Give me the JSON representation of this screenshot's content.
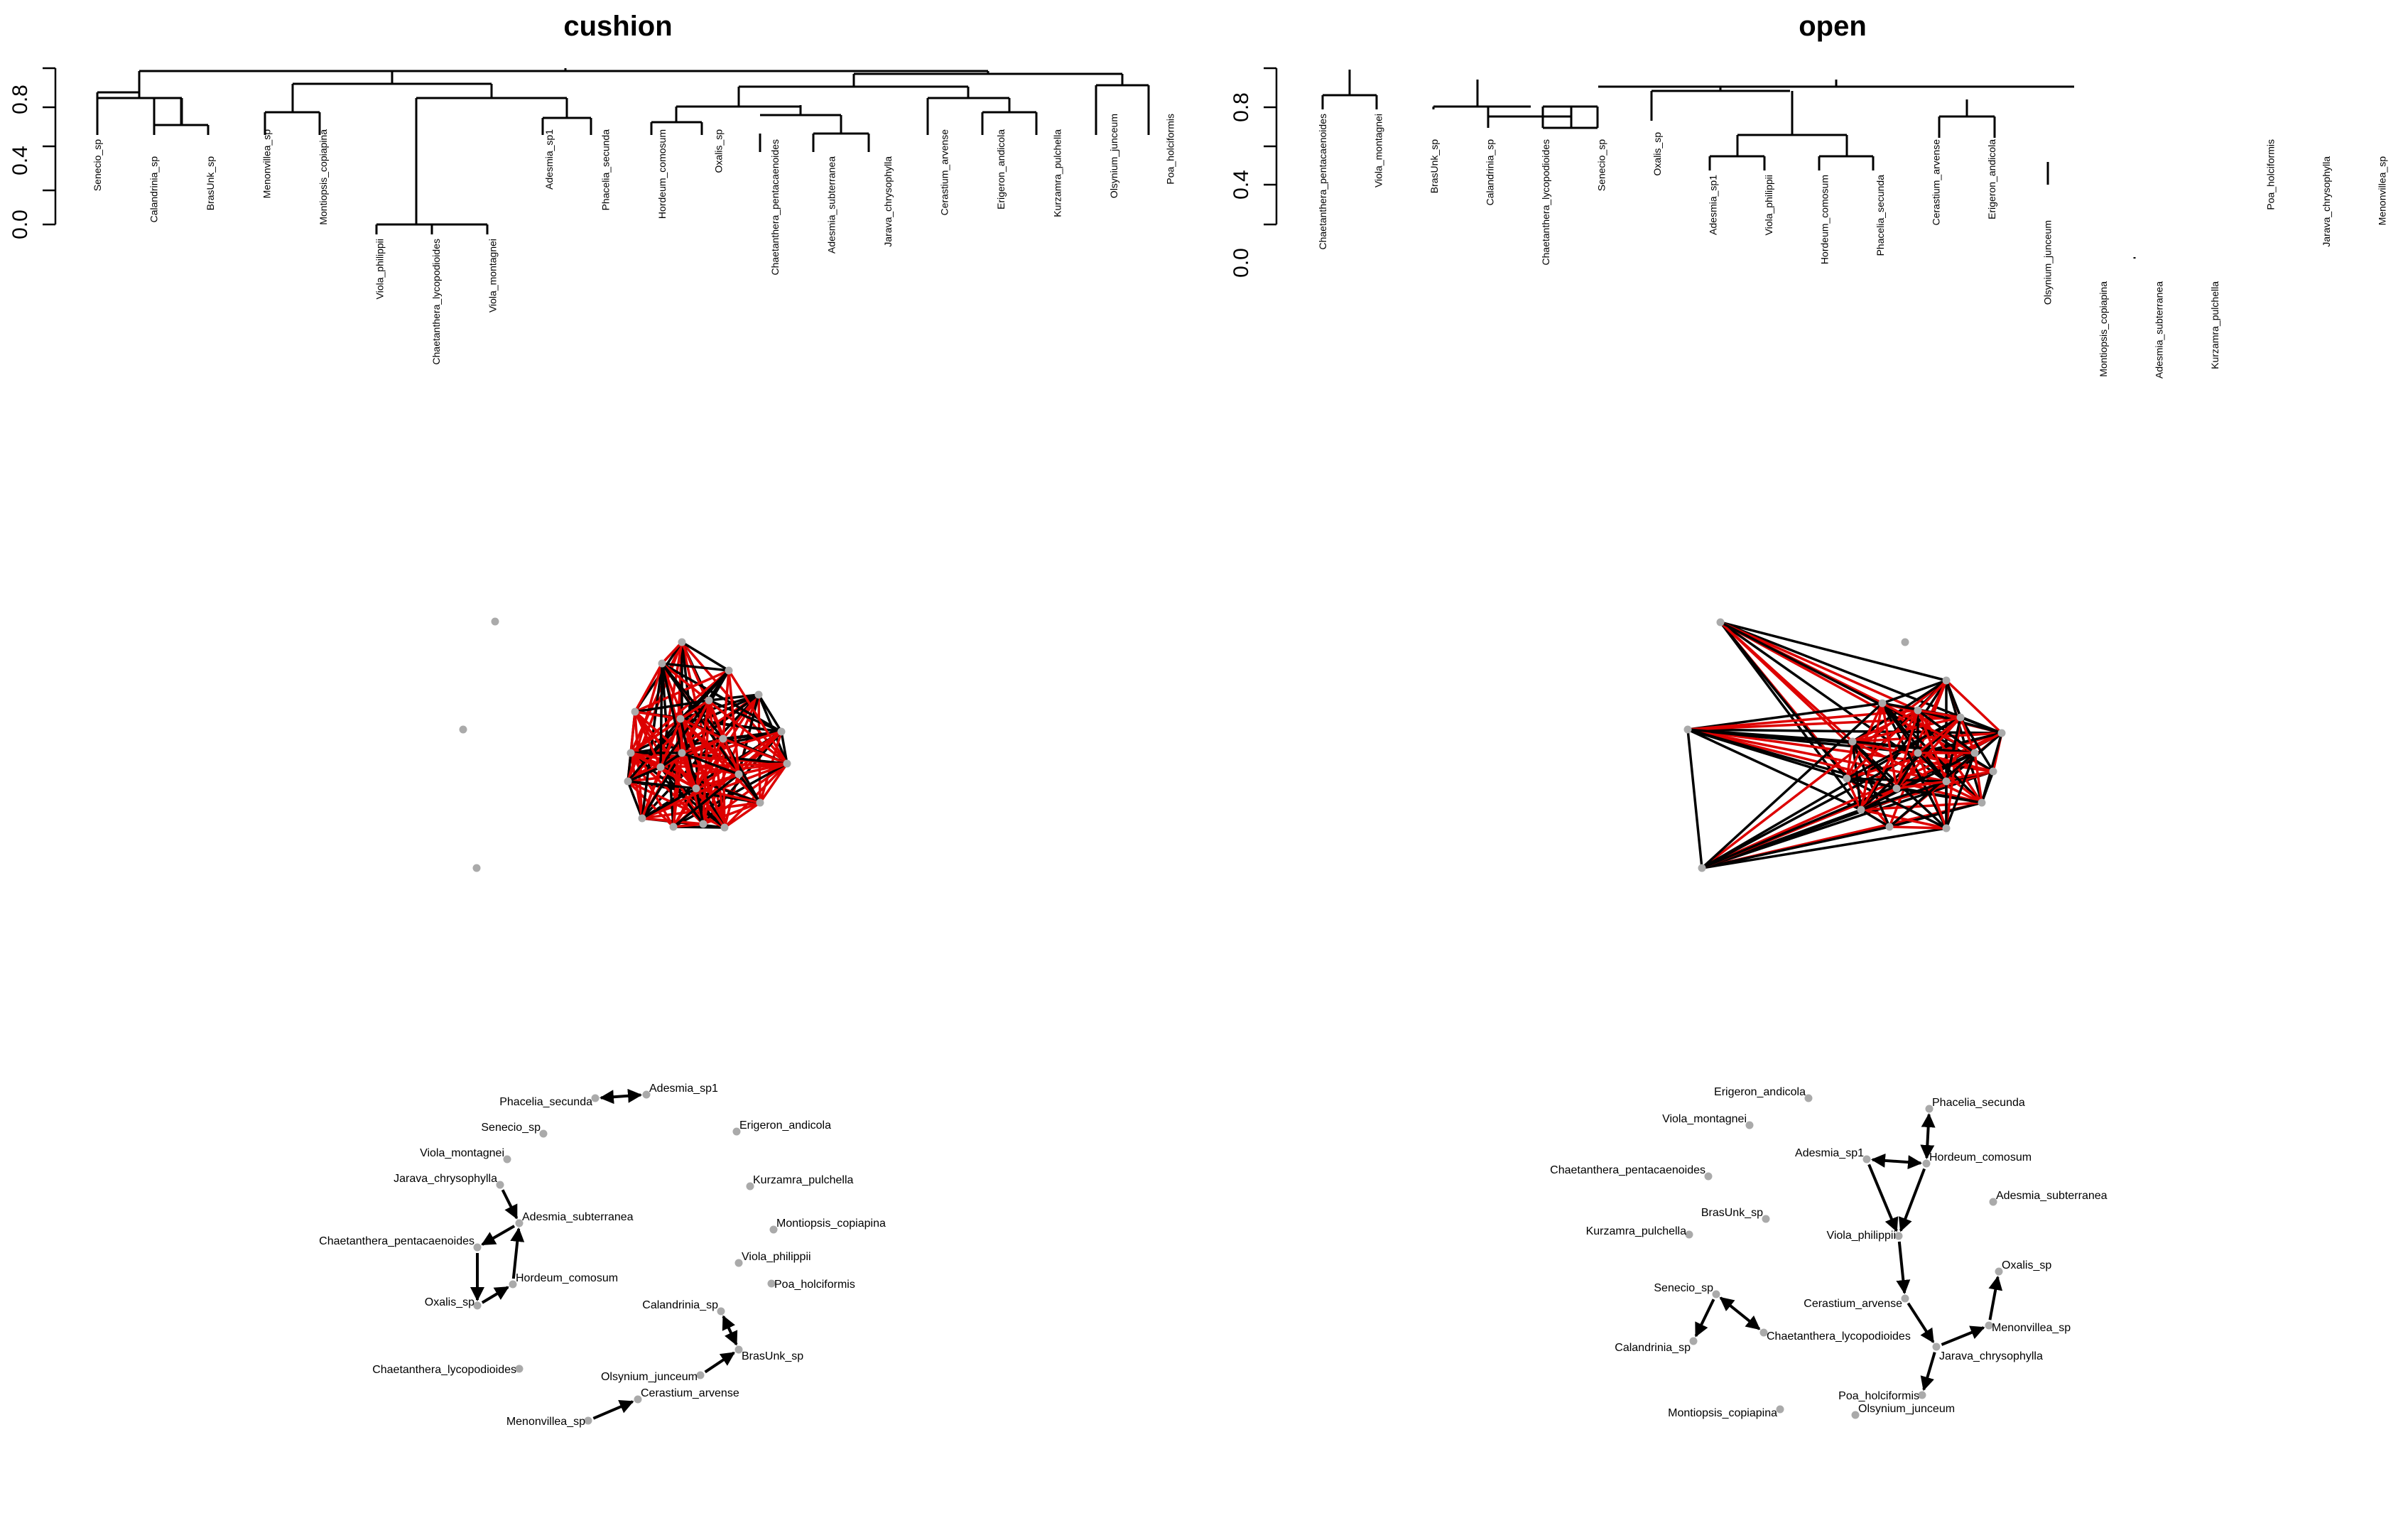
{
  "panels": [
    {
      "title": "cushion",
      "y_ticks": [
        "0.0",
        "0.4",
        "0.8"
      ],
      "leaves": [
        "Senecio_sp",
        "Calandrinia_sp",
        "BrasUnk_sp",
        "Menonvillea_sp",
        "Montiopsis_copiapina",
        "Viola_philippii",
        "Chaetanthera_lycopodioides",
        "Viola_montagnei",
        "Adesmia_sp1",
        "Phacelia_secunda",
        "Hordeum_comosum",
        "Oxalis_sp",
        "Chaetanthera_pentacaenoides",
        "Adesmia_subterranea",
        "Jarava_chrysophylla",
        "Cerastium_arvense",
        "Erigeron_andicola",
        "Kurzamra_pulchella",
        "Olsynium_junceum",
        "Poa_holciformis"
      ],
      "graph_labels": [
        {
          "text": "Phacelia_secunda",
          "anchor": "end"
        },
        {
          "text": "Adesmia_sp1",
          "anchor": "start"
        },
        {
          "text": "Senecio_sp",
          "anchor": "end"
        },
        {
          "text": "Erigeron_andicola",
          "anchor": "start"
        },
        {
          "text": "Viola_montagnei",
          "anchor": "end"
        },
        {
          "text": "Jarava_chrysophylla",
          "anchor": "end"
        },
        {
          "text": "Kurzamra_pulchella",
          "anchor": "start"
        },
        {
          "text": "Adesmia_subterranea",
          "anchor": "start"
        },
        {
          "text": "Montiopsis_copiapina",
          "anchor": "start"
        },
        {
          "text": "Chaetanthera_pentacaenoides",
          "anchor": "end"
        },
        {
          "text": "Viola_philippii",
          "anchor": "start"
        },
        {
          "text": "Hordeum_comosum",
          "anchor": "start"
        },
        {
          "text": "Poa_holciformis",
          "anchor": "start"
        },
        {
          "text": "Oxalis_sp",
          "anchor": "end"
        },
        {
          "text": "Calandrinia_sp",
          "anchor": "end"
        },
        {
          "text": "BrasUnk_sp",
          "anchor": "start"
        },
        {
          "text": "Chaetanthera_lycopodioides",
          "anchor": "end"
        },
        {
          "text": "Olsynium_junceum",
          "anchor": "end"
        },
        {
          "text": "Cerastium_arvense",
          "anchor": "start"
        },
        {
          "text": "Menonvillea_sp",
          "anchor": "end"
        }
      ]
    },
    {
      "title": "open",
      "y_ticks": [
        "0.0",
        "0.4",
        "0.8"
      ],
      "leaves": [
        "Chaetanthera_pentacaenoides",
        "Viola_montagnei",
        "BrasUnk_sp",
        "Calandrinia_sp",
        "Chaetanthera_lycopodioides",
        "Senecio_sp",
        "Oxalis_sp",
        "Adesmia_sp1",
        "Viola_philippii",
        "Hordeum_comosum",
        "Phacelia_secunda",
        "Cerastium_arvense",
        "Erigeron_andicola",
        "Olsynium_junceum",
        "Montiopsis_copiapina",
        "Adesmia_subterranea",
        "Kurzamra_pulchella",
        "Poa_holciformis",
        "Jarava_chrysophylla",
        "Menonvillea_sp"
      ],
      "graph_labels": [
        {
          "text": "Erigeron_andicola",
          "anchor": "end"
        },
        {
          "text": "Phacelia_secunda",
          "anchor": "start"
        },
        {
          "text": "Viola_montagnei",
          "anchor": "end"
        },
        {
          "text": "Adesmia_sp1",
          "anchor": "end"
        },
        {
          "text": "Hordeum_comosum",
          "anchor": "start"
        },
        {
          "text": "Chaetanthera_pentacaenoides",
          "anchor": "end"
        },
        {
          "text": "Adesmia_subterranea",
          "anchor": "start"
        },
        {
          "text": "BrasUnk_sp",
          "anchor": "end"
        },
        {
          "text": "Kurzamra_pulchella",
          "anchor": "end"
        },
        {
          "text": "Viola_philippii",
          "anchor": "end"
        },
        {
          "text": "Oxalis_sp",
          "anchor": "start"
        },
        {
          "text": "Senecio_sp",
          "anchor": "end"
        },
        {
          "text": "Cerastium_arvense",
          "anchor": "end"
        },
        {
          "text": "Menonvillea_sp",
          "anchor": "start"
        },
        {
          "text": "Chaetanthera_lycopodioides",
          "anchor": "start"
        },
        {
          "text": "Calandrinia_sp",
          "anchor": "end"
        },
        {
          "text": "Jarava_chrysophylla",
          "anchor": "start"
        },
        {
          "text": "Poa_holciformis",
          "anchor": "end"
        },
        {
          "text": "Olsynium_junceum",
          "anchor": "start"
        },
        {
          "text": "Montiopsis_copiapina",
          "anchor": "end"
        }
      ]
    }
  ],
  "colors": {
    "edge_positive": "#000000",
    "edge_negative": "#dd0000",
    "node": "#aaaaaa"
  }
}
